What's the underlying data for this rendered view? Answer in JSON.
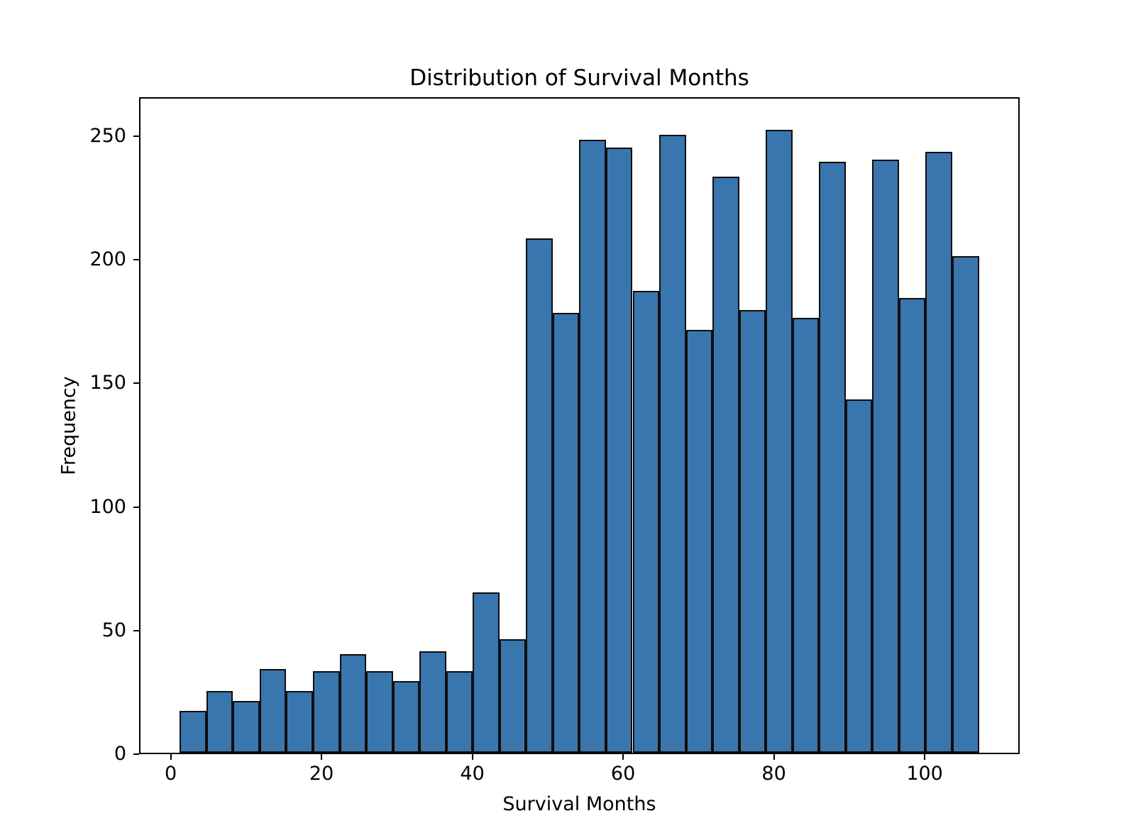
{
  "chart_data": {
    "type": "bar",
    "subtype": "histogram",
    "title": "Distribution of Survival Months",
    "xlabel": "Survival Months",
    "ylabel": "Frequency",
    "bin_start": 1,
    "bin_end": 107,
    "bin_count": 30,
    "values": [
      17,
      25,
      21,
      34,
      25,
      33,
      40,
      33,
      29,
      41,
      33,
      65,
      46,
      208,
      178,
      248,
      245,
      187,
      250,
      171,
      233,
      179,
      252,
      176,
      239,
      143,
      240,
      184,
      243,
      201
    ],
    "x_ticks": [
      0,
      20,
      40,
      60,
      80,
      100
    ],
    "y_ticks": [
      0,
      50,
      100,
      150,
      200,
      250
    ],
    "xlim": [
      -4.2,
      112.6
    ],
    "ylim": [
      0,
      265.8
    ],
    "grid": false,
    "legend": "none",
    "bar_color": "#3a76ae",
    "bar_edge_color": "#0d0d0d",
    "axis_color": "#000000",
    "background_color": "#ffffff"
  }
}
